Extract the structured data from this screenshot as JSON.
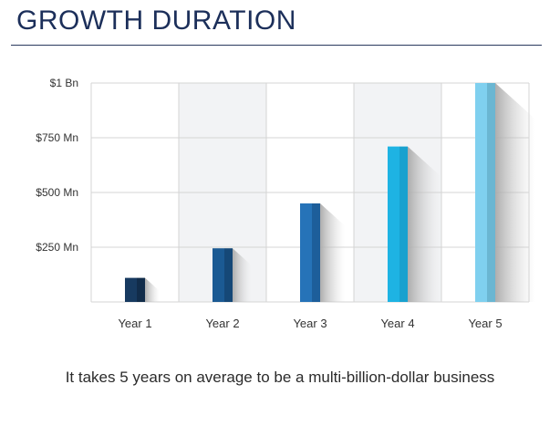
{
  "title": "GROWTH DURATION",
  "caption": "It takes 5 years on average to be a multi-billion-dollar business",
  "chart_data": {
    "type": "bar",
    "categories": [
      "Year 1",
      "Year 2",
      "Year 3",
      "Year 4",
      "Year 5"
    ],
    "values": [
      110,
      245,
      450,
      710,
      1000
    ],
    "unit": "Mn",
    "ylim": [
      0,
      1000
    ],
    "yticks": [
      {
        "value": 250,
        "label": "$250 Mn"
      },
      {
        "value": 500,
        "label": "$500 Mn"
      },
      {
        "value": 750,
        "label": "$750 Mn"
      },
      {
        "value": 1000,
        "label": "$1 Bn"
      }
    ],
    "grid": true,
    "alternating_column_shading": true,
    "colors": {
      "bars": [
        "#173a60",
        "#1b5a93",
        "#2673b8",
        "#1eb3e3",
        "#7fd0ef"
      ],
      "bars_side": [
        "#112c4a",
        "#154877",
        "#1d5e9a",
        "#18a1cf",
        "#6ab6d2"
      ],
      "grid": "#d4d4d4",
      "shade": "#f2f3f5"
    }
  }
}
